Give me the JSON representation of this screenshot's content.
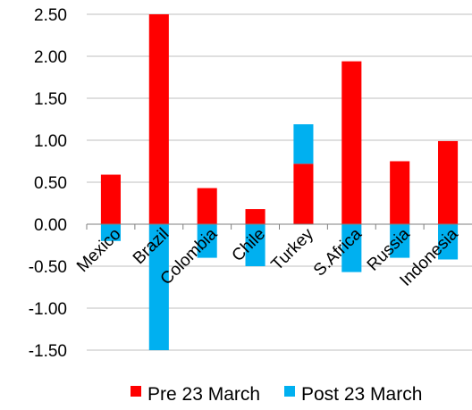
{
  "chart_data": {
    "type": "bar",
    "stacked": true,
    "categories": [
      "Mexico",
      "Brazil",
      "Colombia",
      "Chile",
      "Turkey",
      "S.Africa",
      "Russia",
      "Indonesia"
    ],
    "series": [
      {
        "name": "Pre 23 March",
        "color": "#ff0000",
        "values": [
          0.59,
          2.5,
          0.43,
          0.18,
          0.72,
          1.94,
          0.75,
          0.99
        ]
      },
      {
        "name": "Post 23 March",
        "color": "#00b0f0",
        "values": [
          -0.2,
          -1.5,
          -0.4,
          -0.5,
          0.47,
          -0.57,
          -0.4,
          -0.42
        ]
      }
    ],
    "ylim": [
      -1.5,
      2.5
    ],
    "yticks": [
      "-1.50",
      "-1.00",
      "-0.50",
      "0.00",
      "0.50",
      "1.00",
      "1.50",
      "2.00",
      "2.50"
    ],
    "grid": true,
    "legend_position": "bottom"
  }
}
